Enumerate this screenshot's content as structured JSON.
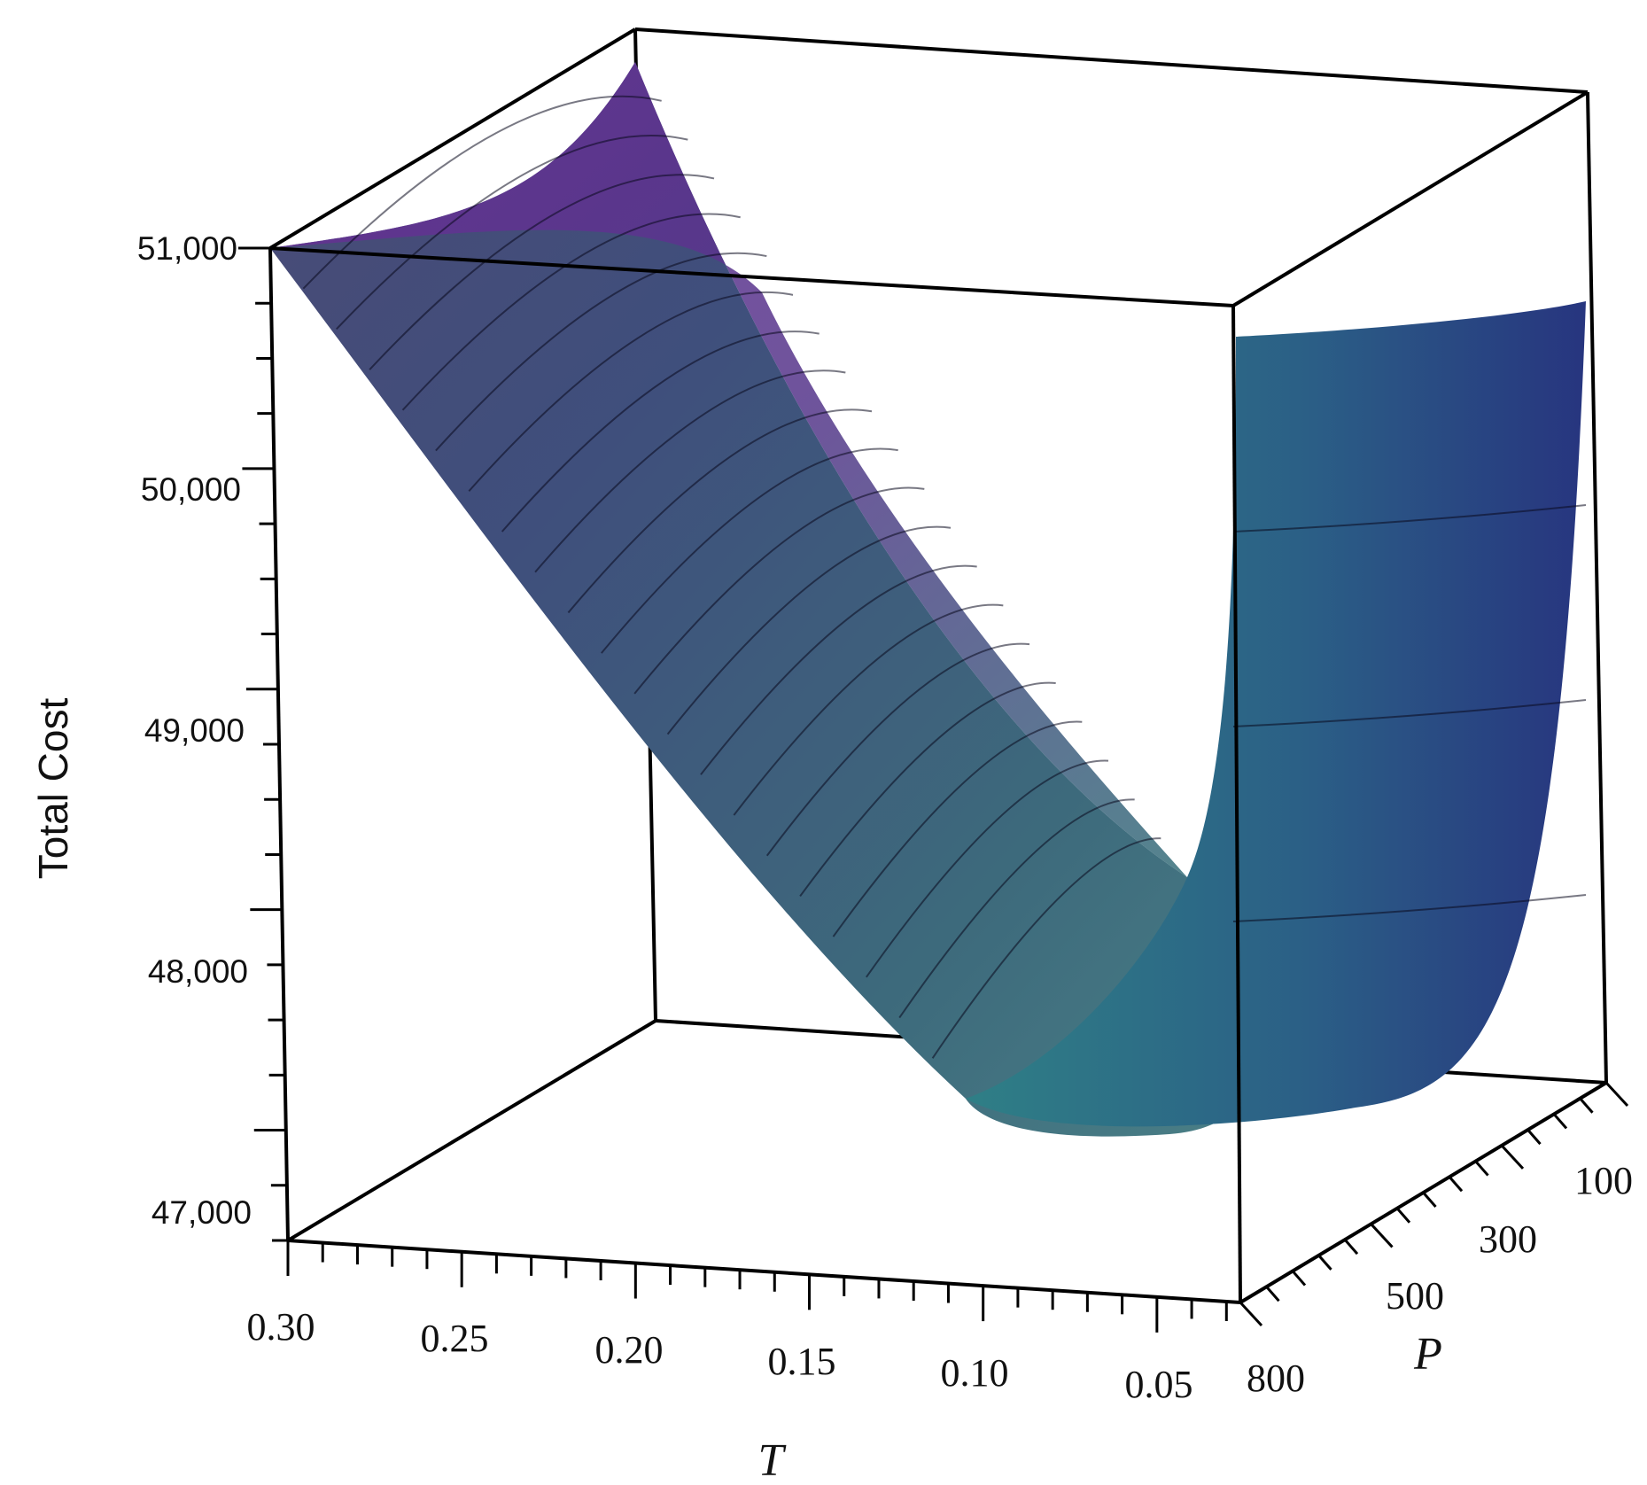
{
  "chart_data": {
    "type": "surface3d",
    "zlabel": "Total Cost",
    "xlabel": "T",
    "ylabel": "P",
    "x_ticks": [
      "0.30",
      "0.25",
      "0.20",
      "0.15",
      "0.10",
      "0.05"
    ],
    "y_ticks": [
      "800",
      "500",
      "300",
      "100"
    ],
    "z_ticks": [
      "51,000",
      "50,000",
      "49,000",
      "48,000",
      "47,000"
    ],
    "xlim": [
      0.03,
      0.3
    ],
    "ylim": [
      100,
      800
    ],
    "zlim": [
      47000,
      51000
    ],
    "surface": {
      "T": [
        0.3,
        0.25,
        0.2,
        0.15,
        0.1,
        0.08,
        0.06,
        0.05,
        0.04,
        0.035,
        0.03
      ],
      "P": [
        800,
        500,
        300,
        100
      ],
      "TotalCost": [
        [
          51000,
          50310,
          49600,
          48850,
          48050,
          47800,
          47650,
          47700,
          48150,
          48800,
          50300
        ],
        [
          51080,
          50360,
          49640,
          48880,
          48070,
          47810,
          47660,
          47710,
          48180,
          48850,
          50350
        ],
        [
          51250,
          50480,
          49730,
          48950,
          48120,
          47840,
          47680,
          47730,
          48220,
          48900,
          50400
        ],
        [
          52100,
          51000,
          50150,
          49250,
          48350,
          47950,
          47740,
          47780,
          48300,
          48980,
          50450
        ]
      ]
    },
    "colormap": [
      "#2e7a78",
      "#3d5a8a",
      "#5b2f86"
    ],
    "grid": false,
    "legend": "none"
  }
}
